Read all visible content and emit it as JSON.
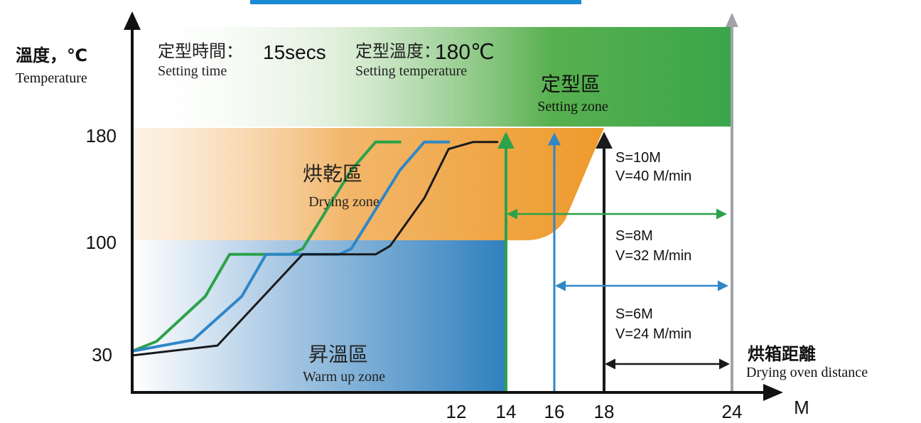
{
  "header": {
    "setting_time_label_cn": "定型時間：",
    "setting_time_value": "15secs",
    "setting_time_label_en": "Setting time",
    "setting_temp_label_cn": "定型溫度：",
    "setting_temp_value": "180℃",
    "setting_temp_label_en": "Setting temperature"
  },
  "colors": {
    "green": "#2ca24a",
    "blue": "#2f87c8",
    "black": "#1a1a1a",
    "orange": "#ee9a2a",
    "zone_blue": "#2f80be",
    "zone_green": "#3aa64a",
    "arrow_grey": "#a0a4a8",
    "banner": "#1a8ad4"
  },
  "chart_data": {
    "type": "line",
    "title": "",
    "ylabel_cn": "溫度，℃",
    "ylabel_en": "Temperature",
    "xlabel_cn": "烘箱距離",
    "xlabel_en": "Drying oven distance",
    "x_unit": "M",
    "x_ticks": [
      12,
      14,
      16,
      18,
      24
    ],
    "y_ticks": [
      180,
      100,
      30
    ],
    "zones": [
      {
        "cn": "定型區",
        "en": "Setting zone"
      },
      {
        "cn": "烘乾區",
        "en": "Drying zone"
      },
      {
        "cn": "昇溫區",
        "en": "Warm up zone"
      }
    ],
    "series": [
      {
        "color": "green",
        "end_x": 14,
        "distance": [
          [
            0,
            31
          ],
          [
            1,
            38
          ],
          [
            3,
            70
          ],
          [
            4,
            100
          ],
          [
            6.5,
            100
          ],
          [
            7,
            104
          ],
          [
            9,
            160
          ],
          [
            10,
            180
          ],
          [
            11,
            180
          ]
        ]
      },
      {
        "color": "blue",
        "end_x": 16,
        "distance": [
          [
            0,
            31
          ],
          [
            2.5,
            39
          ],
          [
            4.5,
            70
          ],
          [
            5.5,
            100
          ],
          [
            8.5,
            100
          ],
          [
            9,
            104
          ],
          [
            11,
            160
          ],
          [
            12,
            180
          ],
          [
            13,
            180
          ]
        ]
      },
      {
        "color": "black",
        "end_x": 18,
        "distance": [
          [
            0,
            28
          ],
          [
            3.5,
            35
          ],
          [
            7,
            100
          ],
          [
            10,
            100
          ],
          [
            10.6,
            106
          ],
          [
            12,
            140
          ],
          [
            13,
            175
          ],
          [
            14,
            180
          ],
          [
            15,
            180
          ]
        ]
      }
    ],
    "distance_annotations": [
      {
        "s": "S=10M",
        "v": "V=40 M/min"
      },
      {
        "s": "S=8M",
        "v": "V=32 M/min"
      },
      {
        "s": "S=6M",
        "v": "V=24 M/min"
      }
    ]
  }
}
